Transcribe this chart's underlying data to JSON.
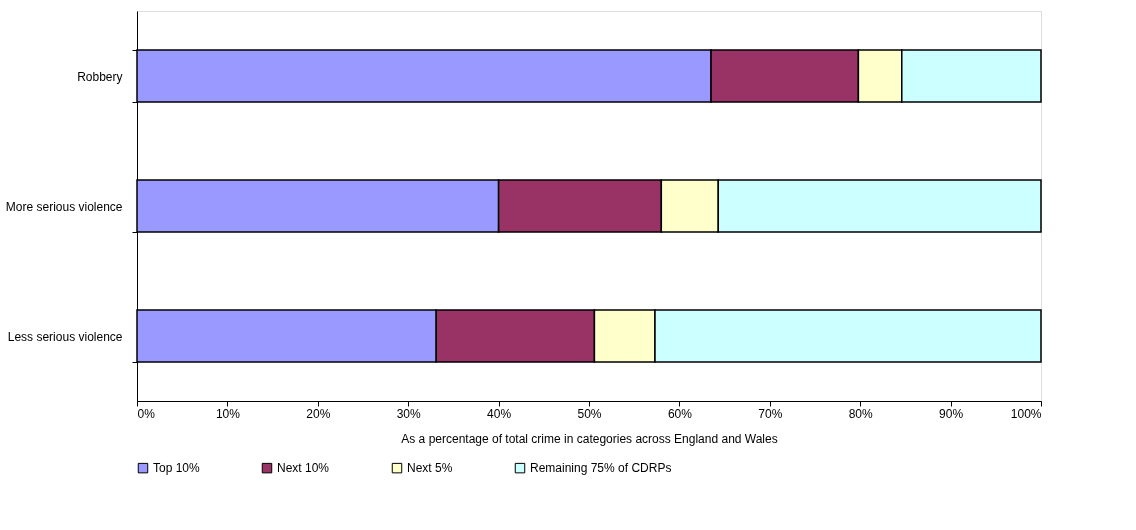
{
  "chart_data": {
    "type": "bar",
    "orientation": "horizontal",
    "stacked": true,
    "categories": [
      "Robbery",
      "More serious violence",
      "Less serious violence"
    ],
    "series": [
      {
        "name": "Top 10%",
        "color": "#9999ff",
        "values": [
          63.5,
          40.0,
          33.1
        ]
      },
      {
        "name": "Next 10%",
        "color": "#993366",
        "values": [
          16.3,
          18.0,
          17.5
        ]
      },
      {
        "name": "Next 5%",
        "color": "#ffffcc",
        "values": [
          4.8,
          6.3,
          6.7
        ]
      },
      {
        "name": "Remaining 75% of CDRPs",
        "color": "#ccffff",
        "values": [
          15.4,
          35.7,
          42.7
        ]
      }
    ],
    "xlabel": "As a percentage of total crime in categories across England and Wales",
    "xlim": [
      0,
      100
    ],
    "xticks": [
      {
        "value": 0,
        "label": "0%"
      },
      {
        "value": 10,
        "label": "10%"
      },
      {
        "value": 20,
        "label": "20%"
      },
      {
        "value": 30,
        "label": "30%"
      },
      {
        "value": 40,
        "label": "40%"
      },
      {
        "value": 50,
        "label": "50%"
      },
      {
        "value": 60,
        "label": "60%"
      },
      {
        "value": 70,
        "label": "70%"
      },
      {
        "value": 80,
        "label": "80%"
      },
      {
        "value": 90,
        "label": "90%"
      },
      {
        "value": 100,
        "label": "100%"
      }
    ],
    "grid": false,
    "legend": "bottom"
  }
}
